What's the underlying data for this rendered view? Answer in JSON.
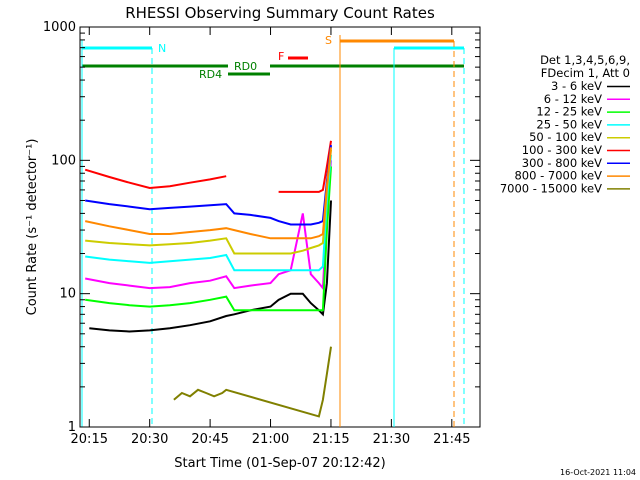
{
  "chart_data": {
    "type": "line",
    "title": "RHESSI Observing Summary Count Rates",
    "xlabel": "Start Time (01-Sep-07 20:12:42)",
    "ylabel": "Count Rate (s⁻¹ detector⁻¹)",
    "y_scale": "log",
    "ylim": [
      1,
      1000
    ],
    "xlim": [
      "20:12:42",
      "21:52:00"
    ],
    "x_ticks": [
      "20:15",
      "20:30",
      "20:45",
      "21:00",
      "21:15",
      "21:30",
      "21:45"
    ],
    "y_ticks": [
      "1",
      "10",
      "100",
      "1000"
    ],
    "grid": false,
    "legend_position": "right",
    "legend_header": [
      "Det 1,3,4,5,6,9,",
      "FDecim 1, Att 0"
    ],
    "timestamp": "16-Oct-2021 11:04",
    "series": [
      {
        "name": "3 - 6 keV",
        "color": "#000000",
        "x": [
          "20:15",
          "20:20",
          "20:25",
          "20:30",
          "20:35",
          "20:40",
          "20:45",
          "20:49",
          "20:51",
          "20:55",
          "21:00",
          "21:02",
          "21:05",
          "21:08",
          "21:10",
          "21:12",
          "21:13",
          "21:14",
          "21:15"
        ],
        "y": [
          5.5,
          5.3,
          5.2,
          5.3,
          5.5,
          5.8,
          6.2,
          6.8,
          7.0,
          7.5,
          8.0,
          9.0,
          10,
          10,
          8.5,
          7.5,
          7.0,
          12,
          50
        ]
      },
      {
        "name": "6 - 12 keV",
        "color": "#ff00ff",
        "x": [
          "20:14",
          "20:20",
          "20:25",
          "20:30",
          "20:35",
          "20:40",
          "20:45",
          "20:49",
          "20:51",
          "20:55",
          "21:00",
          "21:02",
          "21:05",
          "21:08",
          "21:10",
          "21:12",
          "21:13",
          "21:14",
          "21:15"
        ],
        "y": [
          13,
          12,
          11.5,
          11,
          11.2,
          12,
          12.5,
          13.5,
          11,
          11.5,
          12,
          14,
          15,
          40,
          14,
          12,
          11,
          40,
          100
        ]
      },
      {
        "name": "12 - 25 keV",
        "color": "#00ff00",
        "x": [
          "20:14",
          "20:20",
          "20:25",
          "20:30",
          "20:35",
          "20:40",
          "20:45",
          "20:49",
          "20:51",
          "20:55",
          "21:00",
          "21:02",
          "21:05",
          "21:08",
          "21:10",
          "21:12",
          "21:13",
          "21:14",
          "21:15"
        ],
        "y": [
          9,
          8.5,
          8.2,
          8.0,
          8.2,
          8.5,
          9.0,
          9.5,
          7.5,
          7.5,
          7.5,
          7.5,
          7.5,
          7.5,
          7.5,
          7.5,
          7.5,
          30,
          90
        ]
      },
      {
        "name": "25 - 50 keV",
        "color": "#00ffff",
        "x": [
          "20:14",
          "20:20",
          "20:25",
          "20:30",
          "20:35",
          "20:40",
          "20:45",
          "20:49",
          "20:51",
          "20:55",
          "21:00",
          "21:02",
          "21:05",
          "21:08",
          "21:10",
          "21:12",
          "21:13",
          "21:14",
          "21:15"
        ],
        "y": [
          19,
          18,
          17.5,
          17,
          17.5,
          18,
          18.5,
          19.5,
          15,
          15,
          15,
          15,
          15,
          15,
          15,
          15,
          16,
          50,
          110
        ]
      },
      {
        "name": "50 - 100 keV",
        "color": "#cccc00",
        "x": [
          "20:14",
          "20:20",
          "20:25",
          "20:30",
          "20:35",
          "20:40",
          "20:45",
          "20:49",
          "20:51",
          "20:55",
          "21:00",
          "21:02",
          "21:05",
          "21:08",
          "21:10",
          "21:12",
          "21:13",
          "21:14",
          "21:15"
        ],
        "y": [
          25,
          24,
          23.5,
          23,
          23.5,
          24,
          25,
          26,
          20,
          20,
          20,
          20,
          20,
          21,
          22,
          23,
          24,
          60,
          120
        ]
      },
      {
        "name": "100 - 300 keV",
        "color": "#ff0000",
        "x": [
          "20:14",
          "20:20",
          "20:25",
          "20:30",
          "20:35",
          "20:40",
          "20:45",
          "20:49",
          "20:51",
          "20:55",
          "21:00",
          "21:02",
          "21:05",
          "21:08",
          "21:10",
          "21:12",
          "21:13",
          "21:14",
          "21:15"
        ],
        "y": [
          85,
          75,
          68,
          62,
          64,
          68,
          72,
          76,
          null,
          null,
          null,
          58,
          58,
          58,
          58,
          58,
          60,
          90,
          140
        ]
      },
      {
        "name": "300 - 800 keV",
        "color": "#0000ff",
        "x": [
          "20:14",
          "20:20",
          "20:25",
          "20:30",
          "20:35",
          "20:40",
          "20:45",
          "20:49",
          "20:51",
          "20:55",
          "21:00",
          "21:02",
          "21:05",
          "21:08",
          "21:10",
          "21:12",
          "21:13",
          "21:14",
          "21:15"
        ],
        "y": [
          50,
          47,
          45,
          43,
          44,
          45,
          46,
          47,
          40,
          39,
          37,
          35,
          33,
          33,
          33,
          34,
          35,
          70,
          130
        ]
      },
      {
        "name": "800 - 7000 keV",
        "color": "#ff8800",
        "x": [
          "20:14",
          "20:20",
          "20:25",
          "20:30",
          "20:35",
          "20:40",
          "20:45",
          "20:49",
          "20:51",
          "20:55",
          "21:00",
          "21:02",
          "21:05",
          "21:08",
          "21:10",
          "21:12",
          "21:13",
          "21:14",
          "21:15"
        ],
        "y": [
          35,
          32,
          30,
          28,
          28,
          29,
          30,
          31,
          30,
          28,
          26,
          26,
          26,
          26,
          26,
          27,
          28,
          65,
          125
        ]
      },
      {
        "name": "7000 - 15000 keV",
        "color": "#808000",
        "x": [
          "20:36",
          "20:38",
          "20:40",
          "20:42",
          "20:44",
          "20:46",
          "20:48",
          "20:49",
          "21:12",
          "21:13",
          "21:14",
          "21:15"
        ],
        "y": [
          1.6,
          1.8,
          1.7,
          1.9,
          1.8,
          1.7,
          1.8,
          1.9,
          1.2,
          1.6,
          2.5,
          4.0
        ]
      }
    ],
    "annotations": {
      "attenuator_labels": [
        "N",
        "S"
      ],
      "flare_label": "F",
      "decimation_labels": [
        "RD0",
        "RD4"
      ]
    }
  }
}
